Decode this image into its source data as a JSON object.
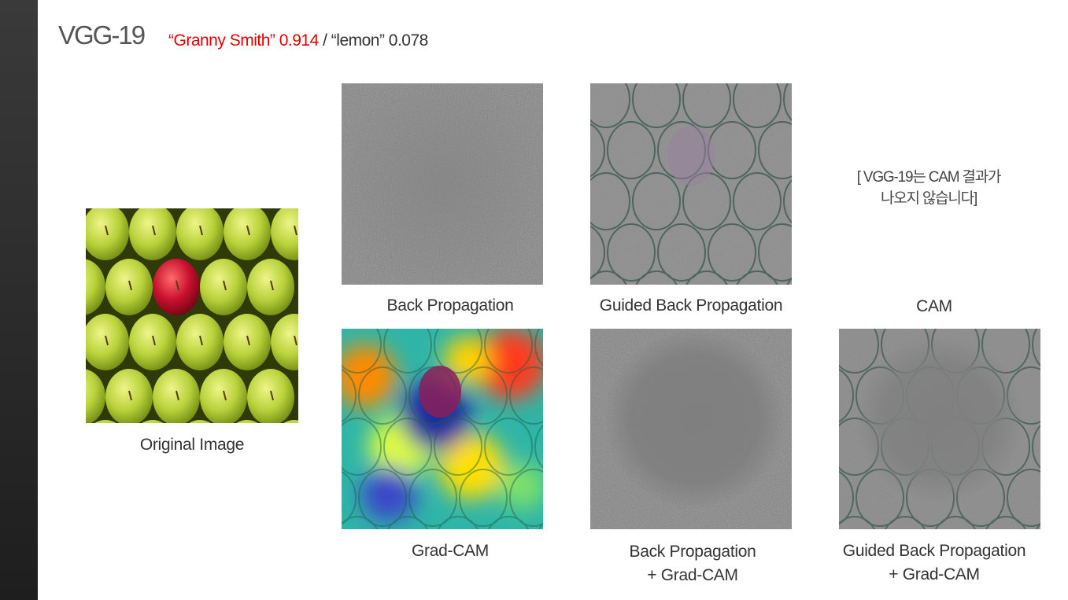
{
  "header": {
    "model_name": "VGG-19",
    "prediction_primary": "“Granny Smith” 0.914",
    "prediction_separator": " / ",
    "prediction_secondary": "“lemon” 0.078"
  },
  "panels": {
    "original": {
      "caption": "Original Image"
    },
    "back_propagation": {
      "caption": "Back Propagation"
    },
    "guided_back_propagation": {
      "caption": "Guided Back Propagation"
    },
    "cam": {
      "caption": "CAM",
      "note_line1": "[ VGG-19는 CAM 결과가",
      "note_line2": "나오지 않습니다]"
    },
    "grad_cam": {
      "caption": "Grad-CAM"
    },
    "back_propagation_grad_cam": {
      "caption_line1": "Back Propagation",
      "caption_line2": "+ Grad-CAM"
    },
    "guided_back_propagation_grad_cam": {
      "caption_line1": "Guided Back Propagation",
      "caption_line2": "+ Grad-CAM"
    }
  },
  "colors": {
    "highlight_red": "#e00000",
    "noise_gray": "#808080",
    "apple_green": "#b9d23a",
    "apple_red": "#c8102e"
  }
}
